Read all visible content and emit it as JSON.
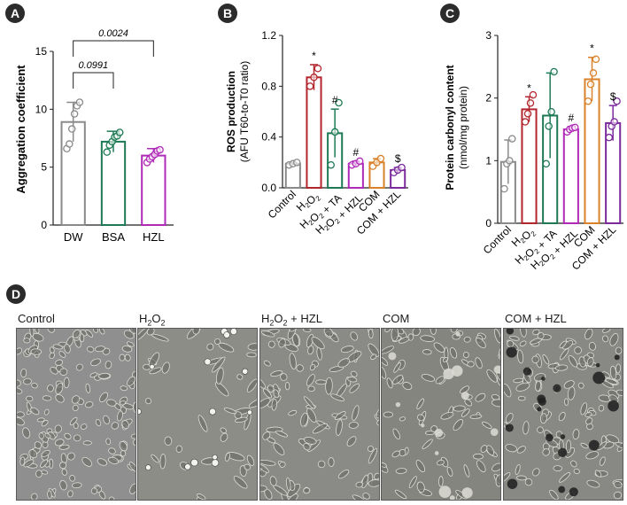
{
  "panels": {
    "A": {
      "badge": "A",
      "ylabel": "Aggregation coefficient",
      "pvalue_top": "0.0024",
      "pvalue_inner": "0.0991"
    },
    "B": {
      "badge": "B",
      "ylabel_line1": "ROS production",
      "ylabel_line2": "(AFU T60-to-T0 ratio)",
      "category_labels": [
        "Control",
        "H2O2",
        "H2O2 + TA",
        "H2O2 + HZL",
        "COM",
        "COM + HZL"
      ],
      "markers": [
        "",
        "*",
        "#",
        "#",
        "",
        "$"
      ]
    },
    "C": {
      "badge": "C",
      "ylabel_line1": "Protein carbonyl content",
      "ylabel_line2": "(nmol/mg protein)",
      "category_labels": [
        "Control",
        "H2O2",
        "H2O2 + TA",
        "H2O2 + HZL",
        "COM",
        "COM + HZL"
      ],
      "markers": [
        "",
        "*",
        "",
        "#",
        "*",
        "$"
      ]
    },
    "D": {
      "badge": "D",
      "labels": [
        "Control",
        "H2O2",
        "H2O2 + HZL",
        "COM",
        "COM + HZL"
      ]
    }
  },
  "colors": {
    "gray": "#8a8a8a",
    "green": "#1e7a55",
    "magenta": "#b02ab8",
    "red": "#b3262e",
    "orange": "#d9822b",
    "purple": "#7b2a9c"
  },
  "chart_data": [
    {
      "panel": "A",
      "type": "bar",
      "categories": [
        "DW",
        "BSA",
        "HZL"
      ],
      "values": [
        8.9,
        7.2,
        6.0
      ],
      "errors": [
        1.7,
        0.9,
        0.6
      ],
      "points": [
        [
          6.6,
          7.0,
          8.3,
          9.6,
          10.3,
          10.6
        ],
        [
          6.3,
          6.9,
          7.2,
          7.6,
          7.7,
          8.0
        ],
        [
          5.4,
          5.7,
          5.9,
          6.1,
          6.4,
          6.5
        ]
      ],
      "colors": [
        "#8a8a8a",
        "#1e7a55",
        "#b02ab8"
      ],
      "ylabel": "Aggregation coefficient",
      "ylim": [
        0,
        15
      ],
      "yticks": [
        0,
        5,
        10,
        15
      ],
      "comparisons": [
        {
          "from": "DW",
          "to": "BSA",
          "p": "0.0991"
        },
        {
          "from": "DW",
          "to": "HZL",
          "p": "0.0024"
        }
      ]
    },
    {
      "panel": "B",
      "type": "bar",
      "categories": [
        "Control",
        "H2O2",
        "H2O2 + TA",
        "H2O2 + HZL",
        "COM",
        "COM + HZL"
      ],
      "values": [
        0.19,
        0.87,
        0.43,
        0.19,
        0.2,
        0.14
      ],
      "errors": [
        0.01,
        0.1,
        0.19,
        0.02,
        0.03,
        0.02
      ],
      "points": [
        [
          0.18,
          0.19,
          0.2
        ],
        [
          0.8,
          0.87,
          0.94
        ],
        [
          0.18,
          0.44,
          0.67
        ],
        [
          0.18,
          0.19,
          0.21
        ],
        [
          0.17,
          0.2,
          0.23
        ],
        [
          0.12,
          0.14,
          0.16
        ]
      ],
      "colors": [
        "#8a8a8a",
        "#b3262e",
        "#1e7a55",
        "#b02ab8",
        "#d9822b",
        "#7b2a9c"
      ],
      "markers": [
        "",
        "*",
        "#",
        "#",
        "",
        "$"
      ],
      "ylabel": "ROS production (AFU T60-to-T0 ratio)",
      "ylim": [
        0,
        1.2
      ],
      "yticks": [
        0.0,
        0.4,
        0.8,
        1.2
      ]
    },
    {
      "panel": "C",
      "type": "bar",
      "categories": [
        "Control",
        "H2O2",
        "H2O2 + TA",
        "H2O2 + HZL",
        "COM",
        "COM + HZL"
      ],
      "values": [
        0.98,
        1.82,
        1.72,
        1.5,
        2.3,
        1.6
      ],
      "errors": [
        0.35,
        0.2,
        0.68,
        0.04,
        0.35,
        0.28
      ],
      "points": [
        [
          0.55,
          0.95,
          1.0,
          1.35
        ],
        [
          1.62,
          1.75,
          1.92,
          2.05
        ],
        [
          0.95,
          1.55,
          1.78,
          2.42
        ],
        [
          1.46,
          1.5,
          1.52,
          1.53
        ],
        [
          1.95,
          2.22,
          2.4,
          2.62
        ],
        [
          1.37,
          1.55,
          1.62,
          1.95
        ]
      ],
      "colors": [
        "#8a8a8a",
        "#b3262e",
        "#1e7a55",
        "#b02ab8",
        "#d9822b",
        "#7b2a9c"
      ],
      "markers": [
        "",
        "*",
        "",
        "#",
        "*",
        "$"
      ],
      "ylabel": "Protein carbonyl content (nmol/mg protein)",
      "ylim": [
        0,
        3
      ],
      "yticks": [
        0,
        1,
        2,
        3
      ]
    }
  ]
}
